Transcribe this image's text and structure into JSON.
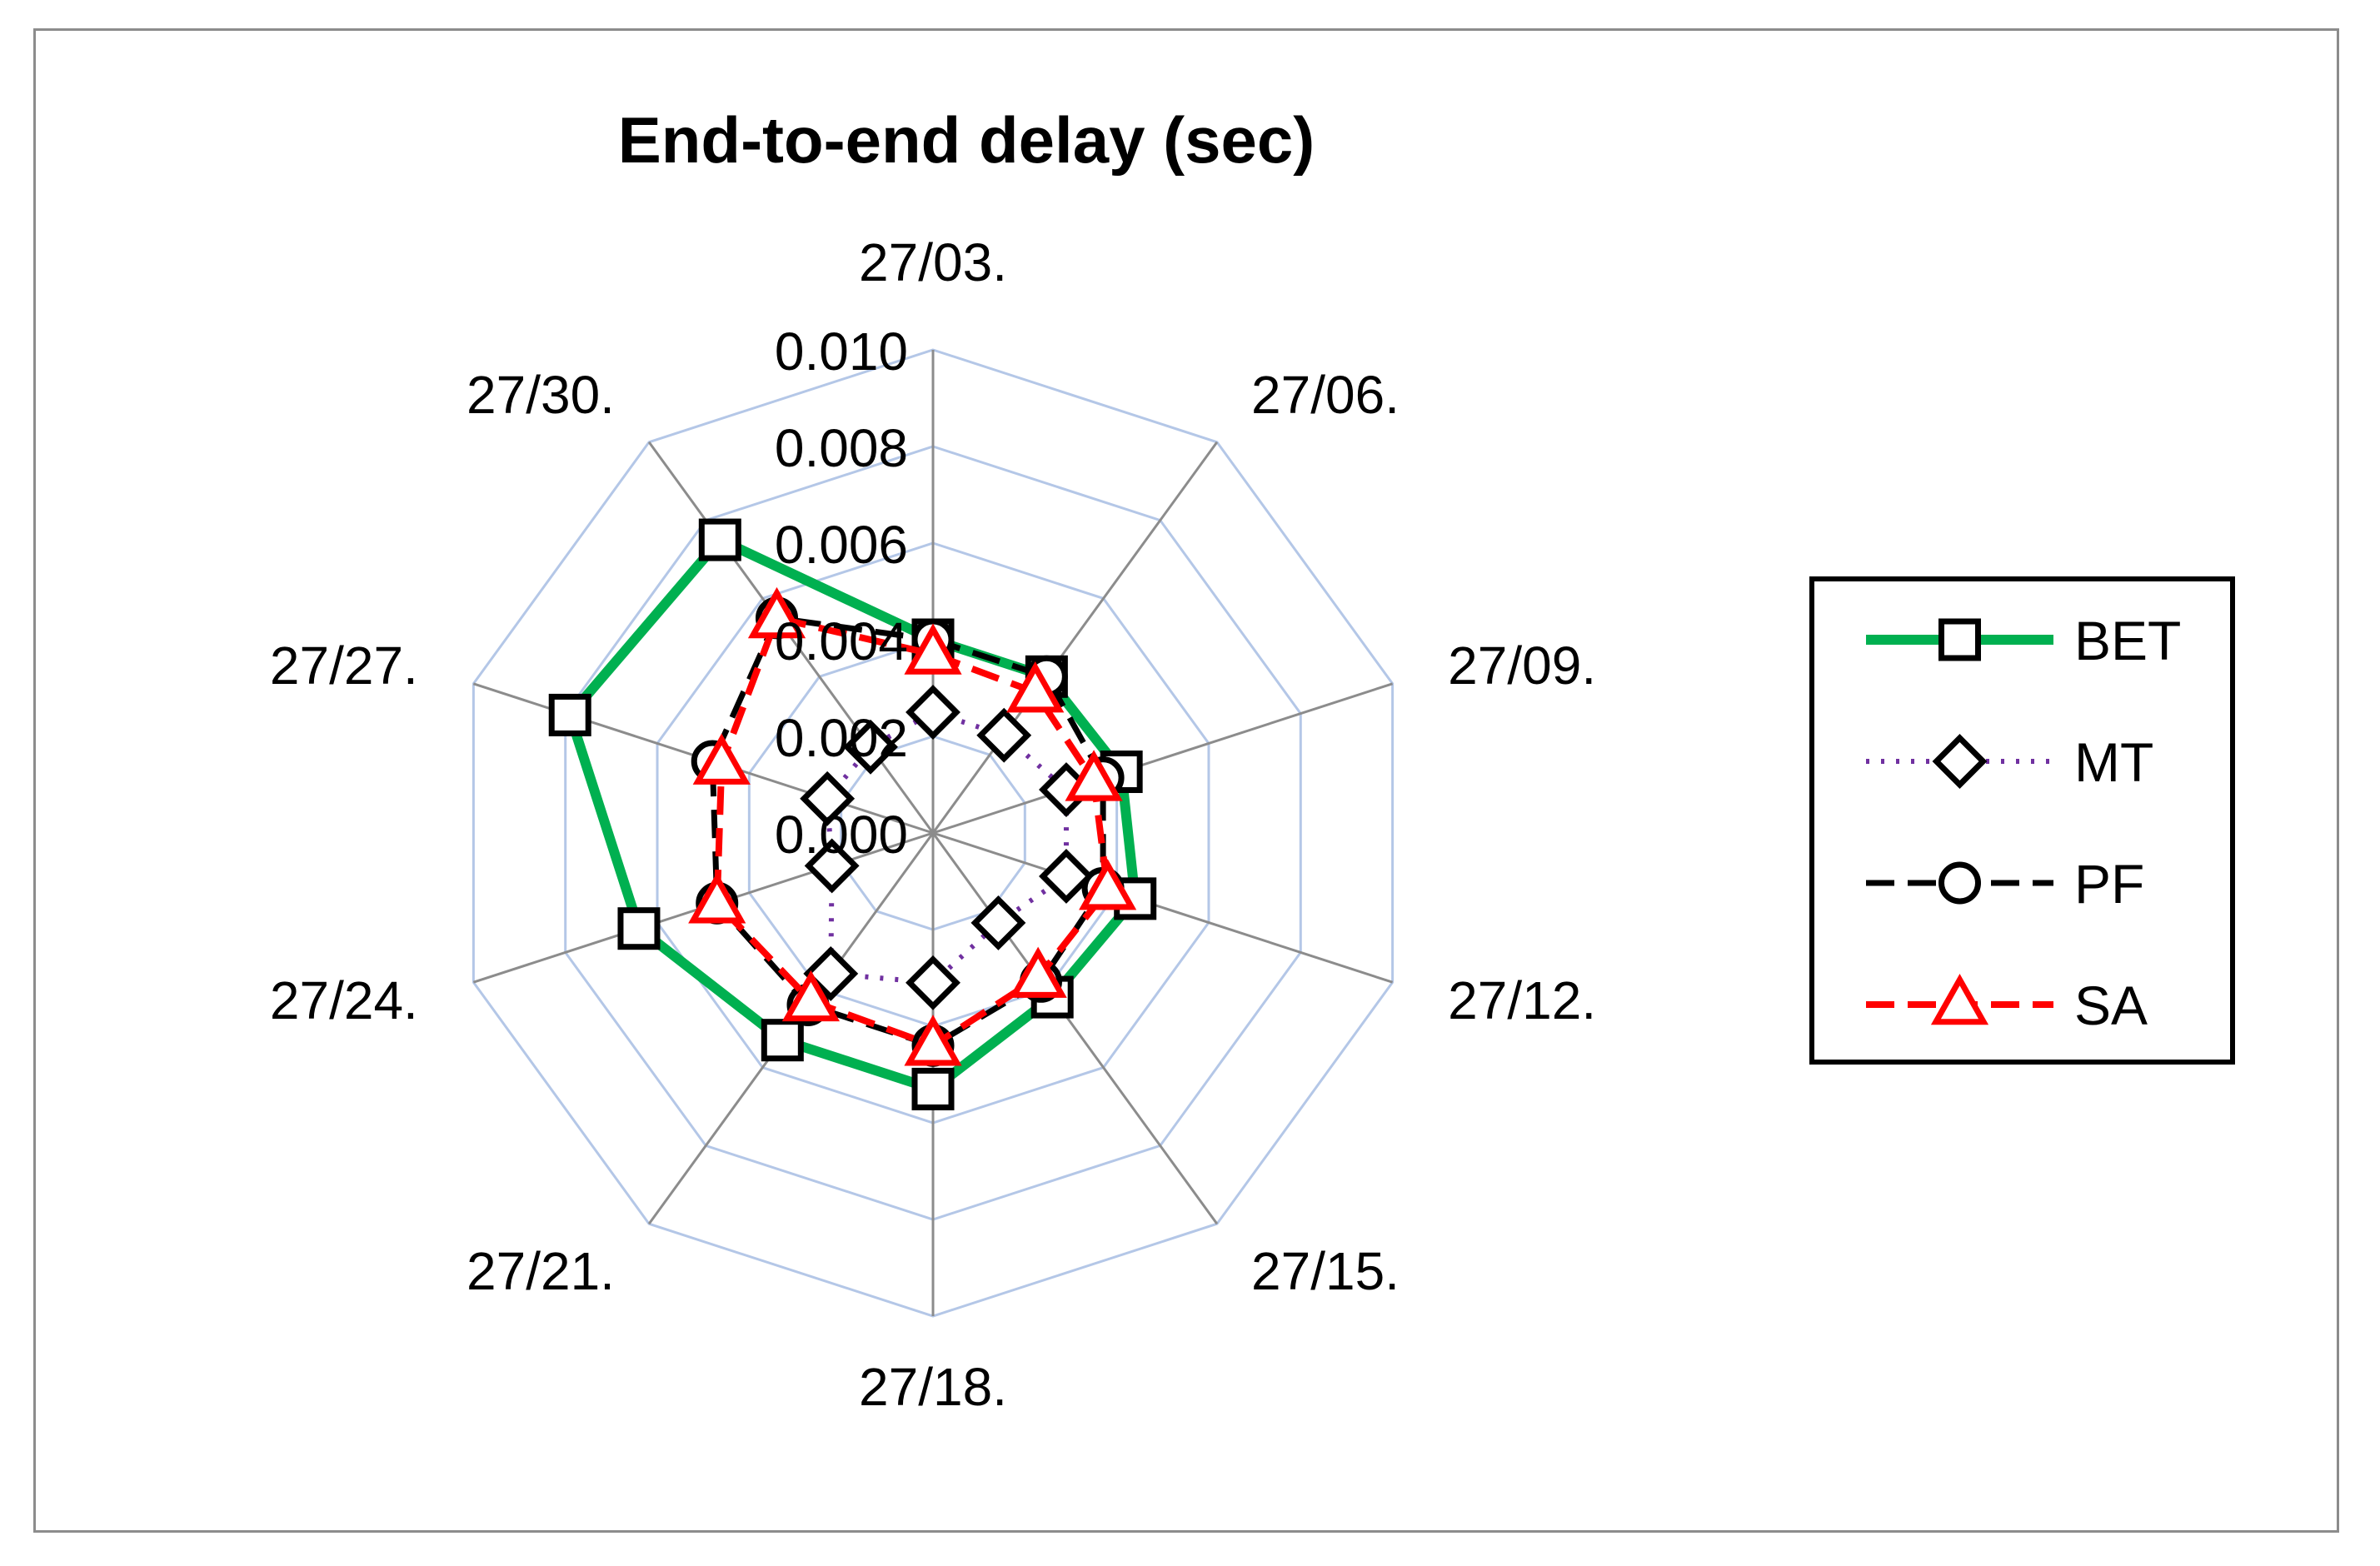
{
  "chart_data": {
    "type": "radar",
    "title": "End-to-end delay (sec)",
    "categories": [
      "27/03.",
      "27/06.",
      "27/09.",
      "27/12.",
      "27/15.",
      "27/18.",
      "27/21.",
      "27/24.",
      "27/27.",
      "27/30."
    ],
    "rlim": [
      0,
      0.01
    ],
    "ticks": [
      "0.000",
      "0.002",
      "0.004",
      "0.006",
      "0.008",
      "0.010"
    ],
    "tick_values": [
      0,
      0.002,
      0.004,
      0.006,
      0.008,
      0.01
    ],
    "series": [
      {
        "name": "BET",
        "marker": "square",
        "line": "solid",
        "color": "#00b050",
        "values": [
          0.004,
          0.004,
          0.0041,
          0.0044,
          0.0042,
          0.0053,
          0.0053,
          0.0064,
          0.0079,
          0.0075
        ]
      },
      {
        "name": "MT",
        "marker": "diamond",
        "line": "dotted",
        "color": "#7030a0",
        "values": [
          0.0025,
          0.0025,
          0.0029,
          0.0029,
          0.0023,
          0.0031,
          0.0036,
          0.0022,
          0.0023,
          0.0022
        ]
      },
      {
        "name": "PF",
        "marker": "circle",
        "line": "dashed",
        "color": "#000000",
        "values": [
          0.004,
          0.004,
          0.0037,
          0.0037,
          0.0038,
          0.0044,
          0.0044,
          0.0047,
          0.0048,
          0.0055
        ]
      },
      {
        "name": "SA",
        "marker": "triangle",
        "line": "dashed",
        "color": "#ff0000",
        "values": [
          0.0037,
          0.0036,
          0.0035,
          0.0038,
          0.0037,
          0.0044,
          0.0043,
          0.0047,
          0.0046,
          0.0055
        ]
      }
    ],
    "legend_position": "right"
  }
}
